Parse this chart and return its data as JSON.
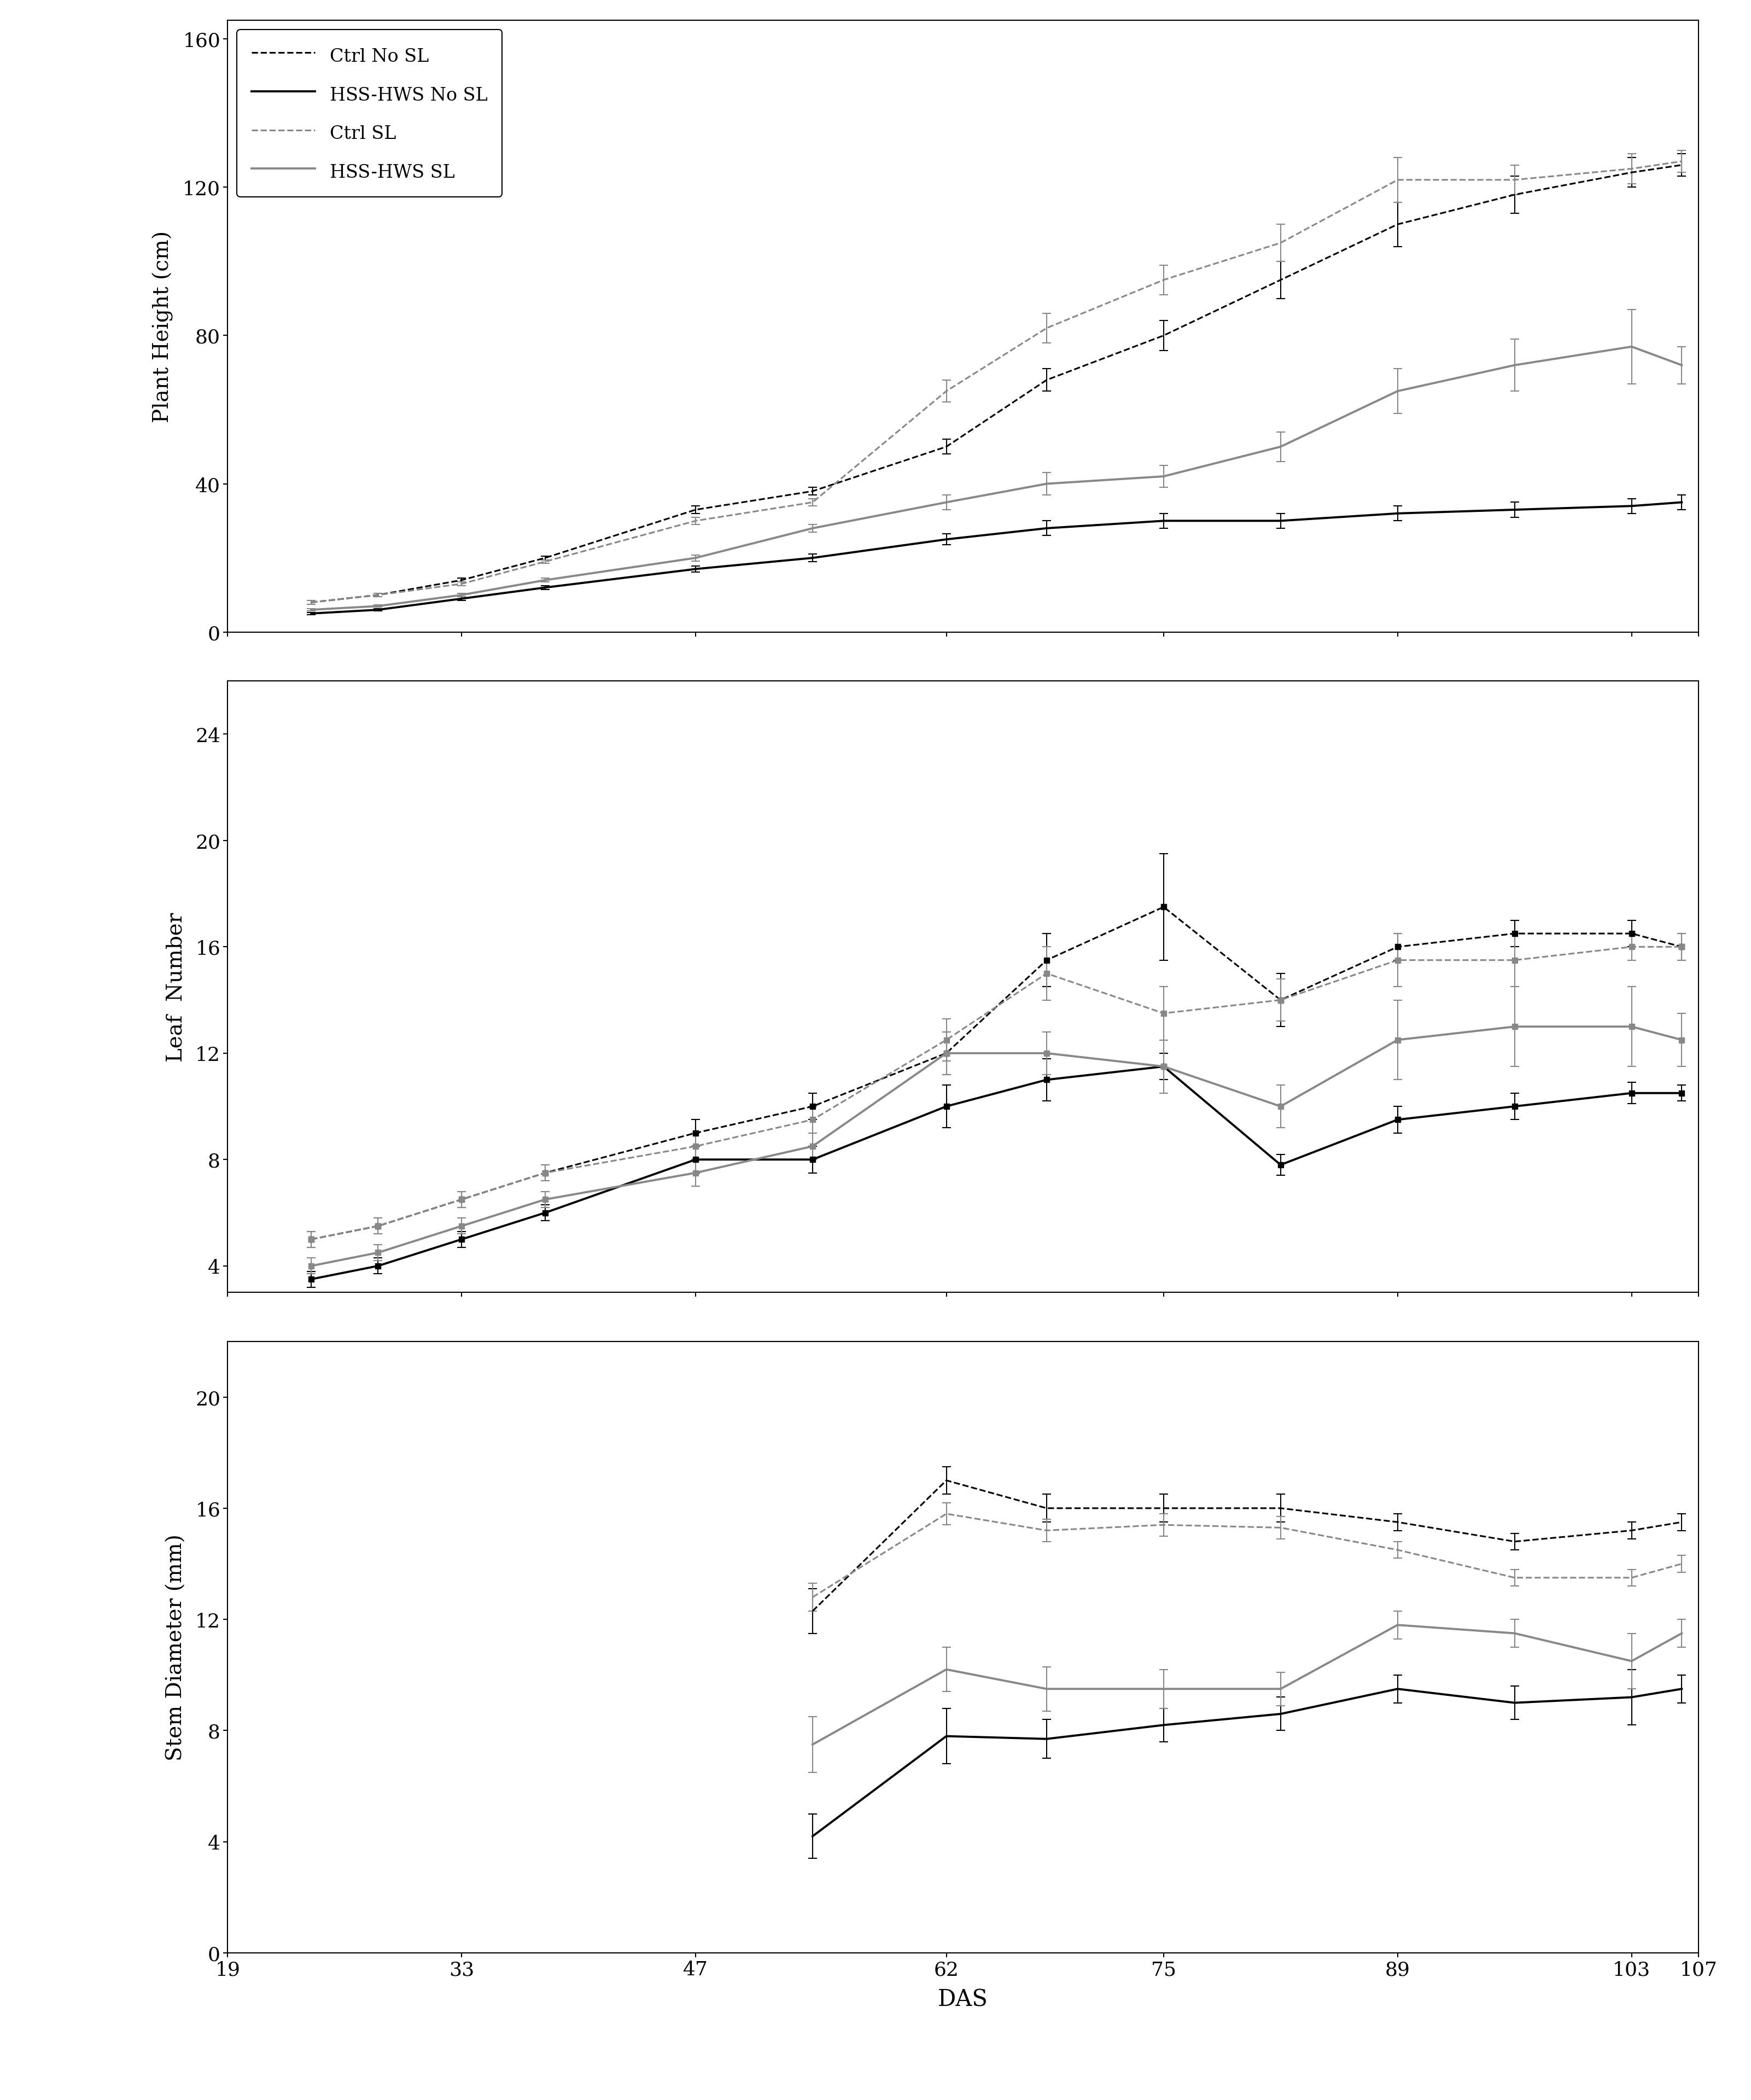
{
  "das": [
    24,
    28,
    33,
    38,
    47,
    54,
    62,
    68,
    75,
    82,
    89,
    96,
    103,
    106
  ],
  "das_stem": [
    54,
    62,
    68,
    75,
    82,
    89,
    96,
    103,
    106
  ],
  "ph_ctrl_no_sl": [
    8,
    10,
    14,
    20,
    33,
    38,
    50,
    68,
    80,
    95,
    110,
    118,
    124,
    126
  ],
  "ph_ctrl_no_sl_e": [
    0.5,
    0.5,
    0.5,
    0.5,
    1,
    1,
    2,
    3,
    4,
    5,
    6,
    5,
    4,
    3
  ],
  "ph_hss_no_sl": [
    5,
    6,
    9,
    12,
    17,
    20,
    25,
    28,
    30,
    30,
    32,
    33,
    34,
    35
  ],
  "ph_hss_no_sl_e": [
    0.3,
    0.3,
    0.5,
    0.5,
    0.8,
    1,
    1.5,
    2,
    2,
    2,
    2,
    2,
    2,
    2
  ],
  "ph_ctrl_sl": [
    8,
    10,
    13,
    19,
    30,
    35,
    65,
    82,
    95,
    105,
    122,
    122,
    125,
    127
  ],
  "ph_ctrl_sl_e": [
    0.5,
    0.5,
    0.5,
    0.5,
    1,
    1,
    3,
    4,
    4,
    5,
    6,
    4,
    4,
    3
  ],
  "ph_hss_sl": [
    6,
    7,
    10,
    14,
    20,
    28,
    35,
    40,
    42,
    50,
    65,
    72,
    77,
    72
  ],
  "ph_hss_sl_e": [
    0.3,
    0.3,
    0.5,
    0.5,
    0.8,
    1,
    2,
    3,
    3,
    4,
    6,
    7,
    10,
    5
  ],
  "ln_ctrl_no_sl": [
    5,
    5.5,
    6.5,
    7.5,
    9,
    10,
    12,
    15.5,
    17.5,
    14,
    16,
    16.5,
    16.5,
    16
  ],
  "ln_ctrl_no_sl_e": [
    0.3,
    0.3,
    0.3,
    0.3,
    0.5,
    0.5,
    0.8,
    1,
    2,
    1,
    0.5,
    0.5,
    0.5,
    0.5
  ],
  "ln_hss_no_sl": [
    3.5,
    4,
    5,
    6,
    8,
    8,
    10,
    11,
    11.5,
    7.8,
    9.5,
    10,
    10.5,
    10.5
  ],
  "ln_hss_no_sl_e": [
    0.3,
    0.3,
    0.3,
    0.3,
    0.5,
    0.5,
    0.8,
    0.8,
    0.5,
    0.4,
    0.5,
    0.5,
    0.4,
    0.3
  ],
  "ln_ctrl_sl": [
    5,
    5.5,
    6.5,
    7.5,
    8.5,
    9.5,
    12.5,
    15,
    13.5,
    14,
    15.5,
    15.5,
    16,
    16
  ],
  "ln_ctrl_sl_e": [
    0.3,
    0.3,
    0.3,
    0.3,
    0.5,
    0.5,
    0.8,
    1,
    1,
    0.8,
    1,
    1,
    0.5,
    0.5
  ],
  "ln_hss_sl": [
    4,
    4.5,
    5.5,
    6.5,
    7.5,
    8.5,
    12,
    12,
    11.5,
    10,
    12.5,
    13,
    13,
    12.5
  ],
  "ln_hss_sl_e": [
    0.3,
    0.3,
    0.3,
    0.3,
    0.5,
    0.5,
    0.8,
    0.8,
    1,
    0.8,
    1.5,
    1.5,
    1.5,
    1
  ],
  "sd_ctrl_no_sl": [
    12.3,
    17.0,
    16.0,
    16.0,
    16.0,
    15.5,
    14.8,
    15.2,
    15.5
  ],
  "sd_ctrl_no_sl_e": [
    0.8,
    0.5,
    0.5,
    0.5,
    0.5,
    0.3,
    0.3,
    0.3,
    0.3
  ],
  "sd_hss_no_sl": [
    4.2,
    7.8,
    7.7,
    8.2,
    8.6,
    9.5,
    9.0,
    9.2,
    9.5
  ],
  "sd_hss_no_sl_e": [
    0.8,
    1.0,
    0.7,
    0.6,
    0.6,
    0.5,
    0.6,
    1.0,
    0.5
  ],
  "sd_ctrl_sl": [
    12.8,
    15.8,
    15.2,
    15.4,
    15.3,
    14.5,
    13.5,
    13.5,
    14.0
  ],
  "sd_ctrl_sl_e": [
    0.5,
    0.4,
    0.4,
    0.4,
    0.4,
    0.3,
    0.3,
    0.3,
    0.3
  ],
  "sd_hss_sl": [
    7.5,
    10.2,
    9.5,
    9.5,
    9.5,
    11.8,
    11.5,
    10.5,
    11.5
  ],
  "sd_hss_sl_e": [
    1.0,
    0.8,
    0.8,
    0.7,
    0.6,
    0.5,
    0.5,
    1.0,
    0.5
  ],
  "color_black": "#000000",
  "color_gray": "#888888",
  "xlabel": "DAS",
  "legend_labels": [
    "Ctrl No SL",
    "HSS-HWS No SL",
    "Ctrl SL",
    "HSS-HWS SL"
  ],
  "ph_yticks": [
    0,
    40,
    80,
    120,
    160
  ],
  "ln_yticks": [
    4,
    8,
    12,
    16,
    20,
    24
  ],
  "sd_yticks": [
    0,
    4,
    8,
    12,
    16,
    20
  ],
  "xtick_pos": [
    19,
    33,
    47,
    62,
    75,
    89,
    103,
    107
  ],
  "xtick_lab": [
    "19",
    "33",
    "47",
    "62",
    "75",
    "89",
    "103",
    "107"
  ]
}
